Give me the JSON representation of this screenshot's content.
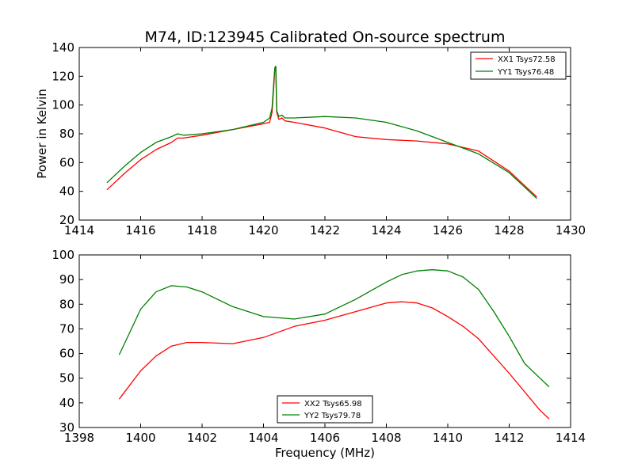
{
  "title": "M74, ID:123945 Calibrated On-source spectrum",
  "ylabel": "Power in Kelvin",
  "xlabel": "Frequency (MHz)",
  "colors": {
    "red": "#ff0000",
    "green": "#008000"
  },
  "chart_data": [
    {
      "type": "line",
      "xlim": [
        1414,
        1430
      ],
      "ylim": [
        20,
        140
      ],
      "xticks": [
        "1414",
        "1416",
        "1418",
        "1420",
        "1422",
        "1424",
        "1426",
        "1428",
        "1430"
      ],
      "yticks": [
        "20",
        "40",
        "60",
        "80",
        "100",
        "120",
        "140"
      ],
      "grid": false,
      "legend_position": "top-right",
      "series": [
        {
          "name": "XX1 Tsys72.58",
          "color": "#ff0000",
          "x": [
            1414.9,
            1415.5,
            1416,
            1416.5,
            1417,
            1417.2,
            1417.4,
            1418,
            1419,
            1420,
            1420.2,
            1420.28,
            1420.34,
            1420.37,
            1420.4,
            1420.43,
            1420.5,
            1420.6,
            1420.7,
            1421,
            1422,
            1423,
            1424,
            1425,
            1426,
            1427,
            1428,
            1428.9
          ],
          "y": [
            41,
            53,
            62,
            69,
            74,
            77,
            77,
            79,
            83,
            87,
            88,
            95,
            115,
            125,
            126,
            95,
            90,
            91,
            89,
            88,
            84,
            78,
            76,
            75,
            73,
            68,
            54,
            36
          ]
        },
        {
          "name": "YY1 Tsys76.48",
          "color": "#008000",
          "x": [
            1414.9,
            1415.5,
            1416,
            1416.5,
            1417,
            1417.2,
            1417.4,
            1418,
            1419,
            1420,
            1420.2,
            1420.28,
            1420.34,
            1420.37,
            1420.4,
            1420.43,
            1420.5,
            1420.6,
            1420.7,
            1421,
            1422,
            1423,
            1424,
            1425,
            1426,
            1427,
            1428,
            1428.9
          ],
          "y": [
            46,
            58,
            67,
            74,
            78,
            80,
            79,
            80,
            83,
            88,
            91,
            98,
            118,
            126,
            127,
            96,
            92,
            93,
            91,
            91,
            92,
            91,
            88,
            82,
            74,
            66,
            53,
            35
          ]
        }
      ]
    },
    {
      "type": "line",
      "xlim": [
        1398,
        1414
      ],
      "ylim": [
        30,
        100
      ],
      "xticks": [
        "1398",
        "1400",
        "1402",
        "1404",
        "1406",
        "1408",
        "1410",
        "1412",
        "1414"
      ],
      "yticks": [
        "30",
        "40",
        "50",
        "60",
        "70",
        "80",
        "90",
        "100"
      ],
      "grid": false,
      "legend_position": "bottom-center",
      "series": [
        {
          "name": "XX2 Tsys65.98",
          "color": "#ff0000",
          "x": [
            1399.3,
            1400,
            1400.5,
            1401,
            1401.5,
            1402,
            1403,
            1404,
            1405,
            1406,
            1407,
            1408,
            1408.5,
            1409,
            1409.5,
            1410,
            1410.5,
            1411,
            1412,
            1413,
            1413.3
          ],
          "y": [
            41.5,
            53,
            59,
            63,
            64.5,
            64.5,
            64,
            66.5,
            71,
            73.5,
            77,
            80.5,
            81,
            80.5,
            78.5,
            75,
            71,
            66,
            52,
            37,
            33.5
          ]
        },
        {
          "name": "YY2 Tsys79.78",
          "color": "#008000",
          "x": [
            1399.3,
            1399.7,
            1400,
            1400.5,
            1401,
            1401.5,
            1402,
            1403,
            1404,
            1405,
            1406,
            1407,
            1408,
            1408.5,
            1409,
            1409.5,
            1410,
            1410.5,
            1411,
            1411.5,
            1412,
            1412.5,
            1413,
            1413.3
          ],
          "y": [
            59.5,
            70,
            78,
            85,
            87.5,
            87,
            85,
            79,
            75,
            74,
            76,
            82,
            89,
            92,
            93.5,
            94,
            93.5,
            91,
            86,
            77,
            67,
            56,
            50,
            46.5
          ]
        }
      ]
    }
  ]
}
